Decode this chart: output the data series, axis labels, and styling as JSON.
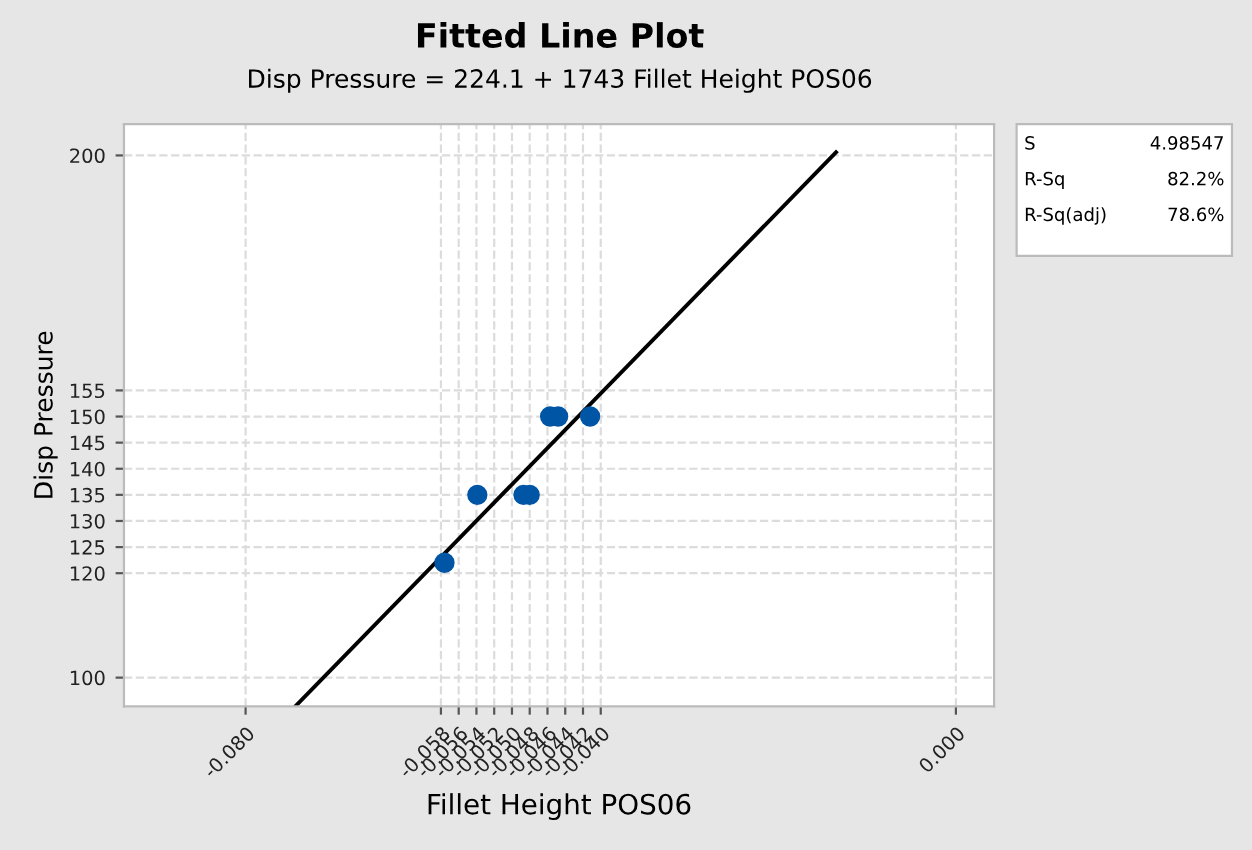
{
  "chart_data": {
    "type": "scatter",
    "title": "Fitted Line Plot",
    "subtitle": "Disp Pressure = 224.1 + 1743 Fillet Height POS06",
    "xlabel": "Fillet Height POS06",
    "ylabel": "Disp Pressure",
    "series": [
      {
        "color": "#0055a5",
        "marker": "circle",
        "x": [
          -0.0576,
          -0.0539,
          -0.0487,
          -0.048,
          -0.0457,
          -0.0448,
          -0.0412
        ],
        "values": [
          122,
          135,
          135,
          135,
          150,
          150,
          150
        ]
      },
      {
        "type": "line",
        "color": "#000000",
        "marker": "none",
        "line_style": "solid",
        "x": [
          -0.0744,
          -0.0135
        ],
        "values": [
          94.5,
          200.6
        ]
      }
    ],
    "xlim": [
      -0.0937,
      0.0043
    ],
    "ylim": [
      94.5,
      206
    ],
    "xticks": [
      {
        "value": -0.08,
        "label": "-0.080"
      },
      -0.058,
      -0.056,
      -0.054,
      -0.052,
      {
        "value": -0.05,
        "label": "-0.050"
      },
      -0.048,
      -0.046,
      -0.044,
      -0.042,
      {
        "value": -0.04,
        "label": "-0.040"
      },
      {
        "value": 0,
        "label": "0.000"
      }
    ],
    "yticks": [
      100,
      120,
      125,
      130,
      135,
      140,
      145,
      150,
      155,
      200
    ],
    "grid": true,
    "annotations": [
      "S",
      "4.98547",
      "R-Sq",
      "82.2%",
      "R-Sq(adj)",
      "78.6%"
    ]
  }
}
